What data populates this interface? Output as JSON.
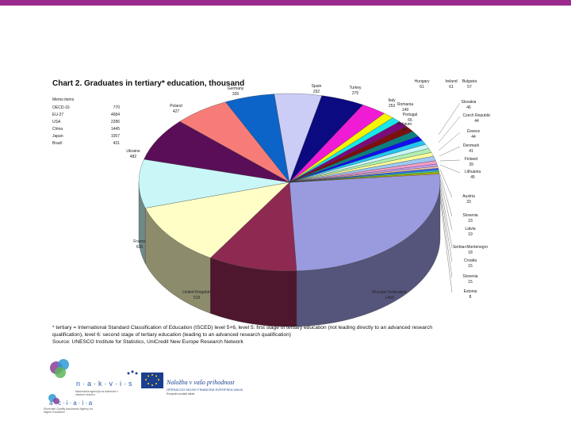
{
  "colors": {
    "topbar": "#9b2a8e",
    "label": "#222222"
  },
  "title": "Chart 2. Graduates in tertiary* education, thousand",
  "memo": {
    "heading": "Memo items",
    "items": [
      {
        "name": "OECD-16",
        "value": "770"
      },
      {
        "name": "EU-27",
        "value": "4684"
      },
      {
        "name": "USA",
        "value": "2286"
      },
      {
        "name": "China",
        "value": "1445"
      },
      {
        "name": "Japan",
        "value": "1057"
      },
      {
        "name": "Brazil",
        "value": "431"
      }
    ]
  },
  "chart_data": {
    "type": "pie",
    "title": "Chart 2. Graduates in tertiary* education, thousand",
    "slices": [
      {
        "name": "Russian Federation",
        "value": 1400,
        "color": "#9a9adf"
      },
      {
        "name": "United Kingdom",
        "value": 519,
        "color": "#8e2a52"
      },
      {
        "name": "France",
        "value": 626,
        "color": "#fefec6"
      },
      {
        "name": "Ukraine",
        "value": 482,
        "color": "#c9f7f7"
      },
      {
        "name": "Poland",
        "value": 427,
        "color": "#5a0e58"
      },
      {
        "name": "Germany",
        "value": 326,
        "color": "#f77c78"
      },
      {
        "name": "Spain",
        "value": 292,
        "color": "#0c64c8"
      },
      {
        "name": "Turkey",
        "value": 275,
        "color": "#cccdf7"
      },
      {
        "name": "Italy",
        "value": 253,
        "color": "#0b0a80"
      },
      {
        "name": "Romania",
        "value": 149,
        "color": "#f01bd4"
      },
      {
        "name": "Portugal",
        "value": 65,
        "color": "#f7f400"
      },
      {
        "name": "Belgium",
        "value": 54,
        "color": "#18e8e8"
      },
      {
        "name": "Hungary",
        "value": 61,
        "color": "#7c0a7c"
      },
      {
        "name": "Ireland",
        "value": 61,
        "color": "#7a1010"
      },
      {
        "name": "Bulgaria",
        "value": 57,
        "color": "#0b8080"
      },
      {
        "name": "Slovakia",
        "value": 46,
        "color": "#1010f0"
      },
      {
        "name": "Czech Republic",
        "value": 44,
        "color": "#22c5f2"
      },
      {
        "name": "Greece",
        "value": 44,
        "color": "#c9f7f7"
      },
      {
        "name": "Denmark",
        "value": 41,
        "color": "#b0f0b0"
      },
      {
        "name": "Finland",
        "value": 39,
        "color": "#fefe9c"
      },
      {
        "name": "Lithuania",
        "value": 45,
        "color": "#9ec8f5"
      },
      {
        "name": "Austria",
        "value": 33,
        "color": "#f59ec8"
      },
      {
        "name": "Slovenia",
        "value": 23,
        "color": "#c79ef5"
      },
      {
        "name": "Latvia",
        "value": 19,
        "color": "#f5c79e"
      },
      {
        "name": "Serbia+Montenegro",
        "value": 18,
        "color": "#3366ff"
      },
      {
        "name": "Croatia",
        "value": 15,
        "color": "#33cccc"
      },
      {
        "name": "Slovenia",
        "value": 15,
        "color": "#99cc00"
      },
      {
        "name": "Estonia",
        "value": 8,
        "color": "#ffcc00"
      }
    ],
    "labels": [
      {
        "name": "Germany",
        "value": "326"
      },
      {
        "name": "Spain",
        "value": "292"
      },
      {
        "name": "Turkey",
        "value": "275"
      },
      {
        "name": "Hungary",
        "value": "61"
      },
      {
        "name": "Ireland",
        "value": "61"
      },
      {
        "name": "Bulgaria",
        "value": "57"
      },
      {
        "name": "Italy",
        "value": "253"
      },
      {
        "name": "Romania",
        "value": "149"
      },
      {
        "name": "Portugal",
        "value": "65"
      },
      {
        "name": "Belgium",
        "value": "54"
      },
      {
        "name": "Slovakia",
        "value": "46"
      },
      {
        "name": "Czech Republic",
        "value": "44"
      },
      {
        "name": "Greece",
        "value": "44"
      },
      {
        "name": "Denmark",
        "value": "41"
      },
      {
        "name": "Finland",
        "value": "39"
      },
      {
        "name": "Lithuania",
        "value": "45"
      },
      {
        "name": "Austria",
        "value": "33"
      },
      {
        "name": "Slovenia",
        "value": "23"
      },
      {
        "name": "Latvia",
        "value": "19"
      },
      {
        "name": "Serbia+Montenegro",
        "value": "18"
      },
      {
        "name": "Croatia",
        "value": "15"
      },
      {
        "name": "Slovenia",
        "value": "15"
      },
      {
        "name": "Estonia",
        "value": "8"
      },
      {
        "name": "Poland",
        "value": "427"
      },
      {
        "name": "Ukraine",
        "value": "482"
      },
      {
        "name": "France",
        "value": "626"
      },
      {
        "name": "United Kingdom",
        "value": "519"
      },
      {
        "name": "Russian Federation",
        "value": "1400"
      }
    ]
  },
  "footnote": {
    "line1": "* tertiary = International Standard Classification of Education (ISCED) level 5+6, level 5: first stage of tertiary education (not leading directly to an advanced research",
    "line2": "qualification), level 6: second stage of tertiary education (leading to an advanced research qualification)",
    "line3": "Source: UNESCO Institute for Statistics, UniCredit New Europe Research Network"
  },
  "logos": {
    "nakvis": "n·a·k·v·i·s",
    "nakvis_sub": "Nacionalna agencija za kakovost v visokem šolstvu",
    "aciaia": "a·c·i·a·i·a",
    "aciaia_sub": "Slovenian Quality Assurance Agency for Higher Education",
    "eu_title": "Naložba v vašo prihodnost",
    "eu_sub": "OPERACIJO DELNO FINANCIRA EVROPSKA UNIJA",
    "eu_sub2": "Evropski socialni sklad"
  }
}
